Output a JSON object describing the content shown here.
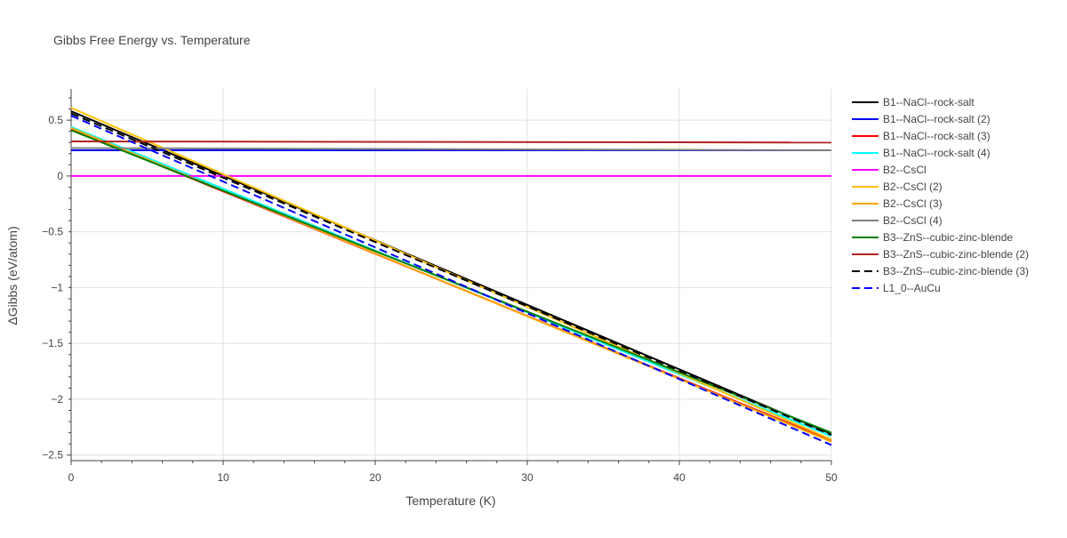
{
  "chart_data": {
    "type": "line",
    "title": "Gibbs Free Energy vs. Temperature",
    "xlabel": "Temperature (K)",
    "ylabel": "ΔGibbs (eV/atom)",
    "xlim": [
      0,
      50
    ],
    "ylim": [
      -2.55,
      0.78
    ],
    "xticks": [
      0,
      10,
      20,
      30,
      40,
      50
    ],
    "xtick_labels": [
      "0",
      "10",
      "20",
      "30",
      "40",
      "50"
    ],
    "yticks": [
      0.5,
      0,
      -0.5,
      -1,
      -1.5,
      -2,
      -2.5
    ],
    "ytick_labels": [
      "0.5",
      "0",
      "−0.5",
      "−1",
      "−1.5",
      "−2",
      "−2.5"
    ],
    "grid": true,
    "legend_position": "right",
    "series": [
      {
        "name": "B1--NaCl--rock-salt",
        "color": "#000000",
        "dash": "solid",
        "x": [
          0,
          50
        ],
        "y": [
          0.58,
          -2.31
        ]
      },
      {
        "name": "B1--NaCl--rock-salt (2)",
        "color": "#0000ff",
        "dash": "solid",
        "x": [
          0,
          50
        ],
        "y": [
          0.23,
          0.23
        ]
      },
      {
        "name": "B1--NaCl--rock-salt (3)",
        "color": "#ff0000",
        "dash": "solid",
        "x": [
          0,
          50
        ],
        "y": [
          0.42,
          -2.37
        ]
      },
      {
        "name": "B1--NaCl--rock-salt (4)",
        "color": "#00ffff",
        "dash": "solid",
        "x": [
          0,
          50
        ],
        "y": [
          0.44,
          -2.33
        ]
      },
      {
        "name": "B2--CsCl",
        "color": "#ff00ff",
        "dash": "solid",
        "x": [
          0,
          50
        ],
        "y": [
          0.0,
          0.0
        ]
      },
      {
        "name": "B2--CsCl (2)",
        "color": "#ffc000",
        "dash": "solid",
        "x": [
          0,
          50
        ],
        "y": [
          0.61,
          -2.36
        ]
      },
      {
        "name": "B2--CsCl (3)",
        "color": "#ffa500",
        "dash": "solid",
        "x": [
          0,
          50
        ],
        "y": [
          0.43,
          -2.38
        ]
      },
      {
        "name": "B2--CsCl (4)",
        "color": "#808080",
        "dash": "solid",
        "x": [
          0,
          50
        ],
        "y": [
          0.25,
          0.23
        ]
      },
      {
        "name": "B3--ZnS--cubic-zinc-blende",
        "color": "#008000",
        "dash": "solid",
        "x": [
          0,
          50
        ],
        "y": [
          0.41,
          -2.3
        ]
      },
      {
        "name": "B3--ZnS--cubic-zinc-blende (2)",
        "color": "#b22222",
        "dash": "solid",
        "x": [
          0,
          50
        ],
        "y": [
          0.31,
          0.3
        ]
      },
      {
        "name": "B3--ZnS--cubic-zinc-blende (3)",
        "color": "#000000",
        "dash": "dash",
        "x": [
          0,
          50
        ],
        "y": [
          0.56,
          -2.32
        ]
      },
      {
        "name": "L1_0--AuCu",
        "color": "#0000ff",
        "dash": "dash",
        "x": [
          0,
          50
        ],
        "y": [
          0.54,
          -2.41
        ]
      }
    ]
  }
}
